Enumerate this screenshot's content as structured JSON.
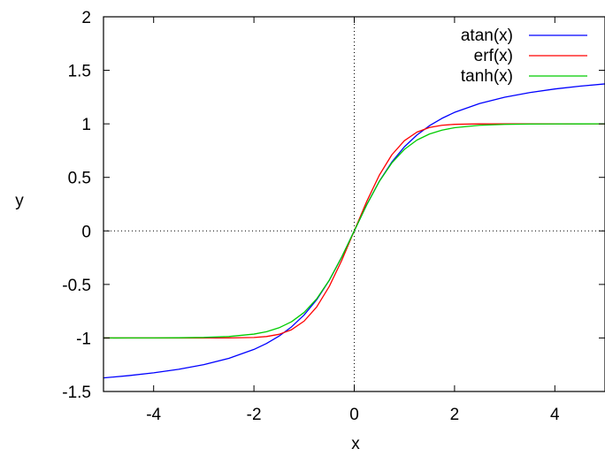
{
  "chart_data": {
    "type": "line",
    "title": "",
    "xlabel": "x",
    "ylabel": "y",
    "xlim": [
      -5,
      5
    ],
    "ylim": [
      -1.5,
      2
    ],
    "x_ticks": [
      -4,
      -2,
      0,
      2,
      4
    ],
    "y_ticks": [
      -1.5,
      -1,
      -0.5,
      0,
      0.5,
      1,
      1.5,
      2
    ],
    "x_tick_labels": [
      "-4",
      "-2",
      "0",
      "2",
      "4"
    ],
    "y_tick_labels": [
      "-1.5",
      "-1",
      "-0.5",
      "0",
      "0.5",
      "1",
      "1.5",
      "2"
    ],
    "zero_axes": "dotted",
    "grid": false,
    "legend_position": "top-right",
    "x": [
      -5,
      -4.5,
      -4,
      -3.5,
      -3,
      -2.5,
      -2,
      -1.75,
      -1.5,
      -1.25,
      -1,
      -0.75,
      -0.5,
      -0.25,
      0,
      0.25,
      0.5,
      0.75,
      1,
      1.25,
      1.5,
      1.75,
      2,
      2.5,
      3,
      3.5,
      4,
      4.5,
      5
    ],
    "series": [
      {
        "name": "atan(x)",
        "color": "#0000ff",
        "values": [
          -1.3734,
          -1.3521,
          -1.3258,
          -1.2925,
          -1.249,
          -1.1903,
          -1.1071,
          -1.0517,
          -0.9828,
          -0.8961,
          -0.7854,
          -0.6435,
          -0.4636,
          -0.245,
          0,
          0.245,
          0.4636,
          0.6435,
          0.7854,
          0.8961,
          0.9828,
          1.0517,
          1.1071,
          1.1903,
          1.249,
          1.2925,
          1.3258,
          1.3521,
          1.3734
        ]
      },
      {
        "name": "erf(x)",
        "color": "#ff0000",
        "values": [
          -1,
          -1,
          -1,
          -1,
          -1,
          -0.9996,
          -0.9953,
          -0.9867,
          -0.9661,
          -0.9229,
          -0.8427,
          -0.7112,
          -0.5205,
          -0.2763,
          0,
          0.2763,
          0.5205,
          0.7112,
          0.8427,
          0.9229,
          0.9661,
          0.9867,
          0.9953,
          0.9996,
          1,
          1,
          1,
          1,
          1
        ]
      },
      {
        "name": "tanh(x)",
        "color": "#00cc00",
        "values": [
          -0.9999,
          -0.9998,
          -0.9993,
          -0.9982,
          -0.9951,
          -0.9866,
          -0.964,
          -0.9414,
          -0.9051,
          -0.8483,
          -0.7616,
          -0.6351,
          -0.4621,
          -0.2449,
          0,
          0.2449,
          0.4621,
          0.6351,
          0.7616,
          0.8483,
          0.9051,
          0.9414,
          0.964,
          0.9866,
          0.9951,
          0.9982,
          0.9993,
          0.9998,
          0.9999
        ]
      }
    ]
  }
}
